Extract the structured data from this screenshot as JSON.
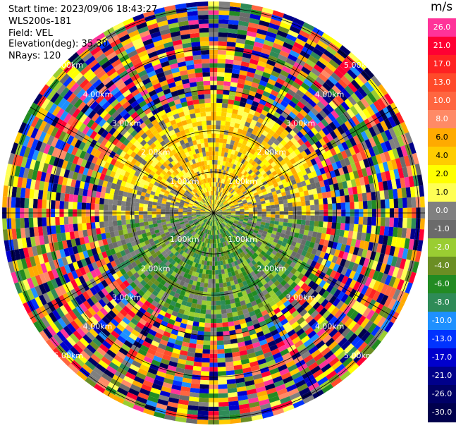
{
  "header": {
    "start_time": "Start time: 2023/09/06 18:43:27",
    "site": "WLS200s-181",
    "field": "Field: VEL",
    "elevation": "Elevation(deg): 35.30",
    "nrays": "NRays: 120"
  },
  "colorbar": {
    "unit": "m/s",
    "levels": [
      {
        "label": "26.0",
        "color": "#ff3399"
      },
      {
        "label": "21.0",
        "color": "#ff0033"
      },
      {
        "label": "17.0",
        "color": "#ff2222"
      },
      {
        "label": "13.0",
        "color": "#ff4a2a"
      },
      {
        "label": "10.0",
        "color": "#ff6640"
      },
      {
        "label": "8.0",
        "color": "#ff8a66"
      },
      {
        "label": "6.0",
        "color": "#ffaa00"
      },
      {
        "label": "4.0",
        "color": "#ffcc00"
      },
      {
        "label": "2.0",
        "color": "#ffff00"
      },
      {
        "label": "1.0",
        "color": "#ffff55"
      },
      {
        "label": "0.0",
        "color": "#808080"
      },
      {
        "label": "-1.0",
        "color": "#6b6b6b"
      },
      {
        "label": "-2.0",
        "color": "#9acd32"
      },
      {
        "label": "-4.0",
        "color": "#6b8e23"
      },
      {
        "label": "-6.0",
        "color": "#228b22"
      },
      {
        "label": "-8.0",
        "color": "#2e8b57"
      },
      {
        "label": "-10.0",
        "color": "#1e90ff"
      },
      {
        "label": "-13.0",
        "color": "#0033ff"
      },
      {
        "label": "-17.0",
        "color": "#0000cd"
      },
      {
        "label": "-21.0",
        "color": "#00008b"
      },
      {
        "label": "-26.0",
        "color": "#000066"
      },
      {
        "label": "-30.0",
        "color": "#00004d"
      }
    ]
  },
  "chart_data": {
    "type": "heatmap",
    "ring_labels": [
      "1.00km",
      "2.00km",
      "3.00km",
      "4.00km",
      "5.00km"
    ],
    "nrays": 120,
    "range_max_km": 5.0,
    "sectors": [
      {
        "description": "North-east / north-west, near range",
        "dominant_velocity": "2.0 to 6.0 m/s (yellow/orange)"
      },
      {
        "description": "South, near range",
        "dominant_velocity": "-2.0 to -8.0 m/s (green)"
      },
      {
        "description": "East-west band near center",
        "dominant_velocity": "0.0 to -1.0 m/s (gray)"
      },
      {
        "description": "Far range (beyond ~2.5 km)",
        "dominant_velocity": "noise, all colors"
      }
    ]
  }
}
